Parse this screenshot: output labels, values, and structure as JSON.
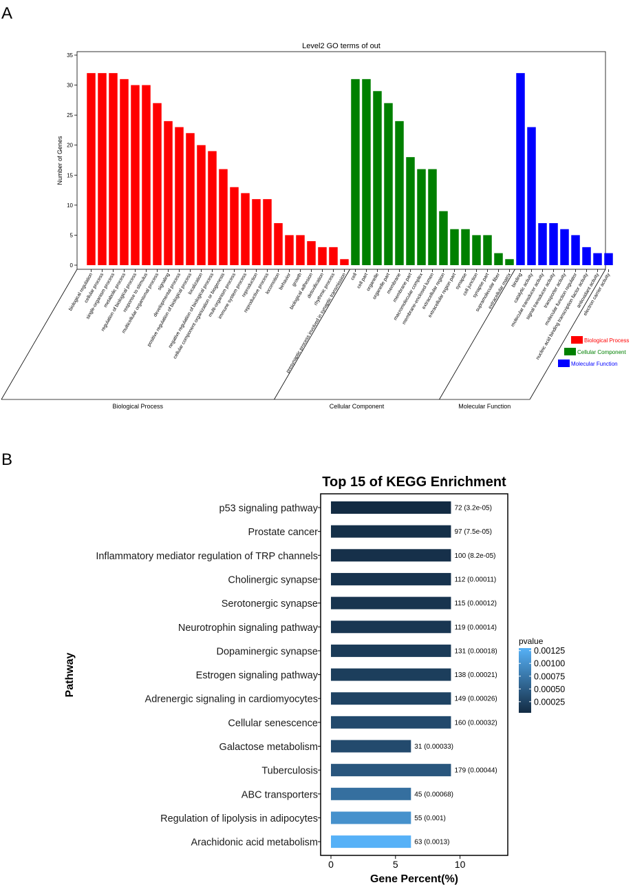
{
  "panels": {
    "a_label": "A",
    "b_label": "B"
  },
  "chart_data": [
    {
      "type": "bar",
      "title": "Level2 GO terms of out",
      "ylabel": "Number of Genes",
      "ylim": [
        0,
        35
      ],
      "yticks": [
        0,
        5,
        10,
        15,
        20,
        25,
        30,
        35
      ],
      "categories": [
        "biological regulation",
        "cellular process",
        "single-organism process",
        "metabolic process",
        "regulation of biological process",
        "response to stimulus",
        "multicellular organismal process",
        "signaling",
        "developmental process",
        "positive regulation of biological process",
        "localization",
        "negative regulation of biological process",
        "cellular component organization or biogenesis",
        "multi-organism process",
        "immune system process",
        "reproduction",
        "reproductive process",
        "locomotion",
        "behavior",
        "growth",
        "biological adhesion",
        "detoxification",
        "rhythmic process",
        "presynaptic process involved in synaptic transmission",
        "cell",
        "cell part",
        "organelle",
        "organelle part",
        "membrane",
        "membrane part",
        "macromolecular complex",
        "membrane-enclosed lumen",
        "extracellular region",
        "extracellular region part",
        "synapse",
        "cell junction",
        "synapse part",
        "supramolecular fiber",
        "extracellular matrix",
        "binding",
        "catalytic activity",
        "molecular transducer activity",
        "signal transducer activity",
        "transporter activity",
        "molecular function regulator",
        "nucleic acid binding transcription factor activity",
        "antioxidant activity",
        "electron carrier activity"
      ],
      "values": [
        32,
        32,
        32,
        31,
        30,
        30,
        27,
        24,
        23,
        22,
        20,
        19,
        16,
        13,
        12,
        11,
        11,
        7,
        5,
        5,
        4,
        3,
        3,
        1,
        31,
        31,
        29,
        27,
        24,
        18,
        16,
        16,
        9,
        6,
        6,
        5,
        5,
        2,
        1,
        32,
        23,
        7,
        7,
        6,
        5,
        3,
        2,
        2
      ],
      "groups": [
        {
          "name": "Biological Process",
          "count": 24,
          "color": "#ff0000"
        },
        {
          "name": "Cellular Component",
          "count": 15,
          "color": "#008000"
        },
        {
          "name": "Molecular Function",
          "count": 9,
          "color": "#0000ff"
        }
      ],
      "legend": [
        "Biological Process",
        "Cellular Component",
        "Molecular Function"
      ]
    },
    {
      "type": "bar",
      "orientation": "horizontal",
      "title": "Top 15 of KEGG Enrichment",
      "xlabel": "Gene Percent(%)",
      "ylabel": "Pathway",
      "xticks": [
        0,
        5,
        10
      ],
      "xlim": [
        -0.8,
        13.7
      ],
      "categories": [
        "p53 signaling pathway",
        "Prostate cancer",
        "Inflammatory mediator regulation of TRP channels",
        "Cholinergic synapse",
        "Serotonergic synapse",
        "Neurotrophin signaling pathway",
        "Dopaminergic synapse",
        "Estrogen signaling pathway",
        "Adrenergic signaling in cardiomyocytes",
        "Cellular senescence",
        "Galactose metabolism",
        "Tuberculosis",
        "ABC transporters",
        "Regulation of lipolysis in adipocytes",
        "Arachidonic acid metabolism"
      ],
      "values": [
        9.3,
        9.3,
        9.3,
        9.3,
        9.3,
        9.3,
        9.3,
        9.3,
        9.3,
        9.3,
        6.2,
        9.3,
        6.2,
        6.2,
        6.2
      ],
      "pvalues": [
        3.2e-05,
        7.5e-05,
        8.2e-05,
        0.00011,
        0.00012,
        0.00014,
        0.00018,
        0.00021,
        0.00026,
        0.00032,
        0.00033,
        0.00044,
        0.00068,
        0.001,
        0.0013
      ],
      "bar_labels": [
        "72 (3.2e-05)",
        "97 (7.5e-05)",
        "100 (8.2e-05)",
        "112 (0.00011)",
        "115 (0.00012)",
        "119 (0.00014)",
        "131 (0.00018)",
        "138 (0.00021)",
        "149 (0.00026)",
        "160 (0.00032)",
        "31 (0.00033)",
        "179 (0.00044)",
        "45 (0.00068)",
        "55 (0.001)",
        "63 (0.0013)"
      ],
      "colorbar": {
        "title": "pvalue",
        "ticks": [
          "0.00125",
          "0.00100",
          "0.00075",
          "0.00050",
          "0.00025"
        ],
        "tick_values": [
          0.00125,
          0.001,
          0.00075,
          0.0005,
          0.00025
        ],
        "range": [
          3.2e-05,
          0.0013
        ],
        "low_color": "#132b43",
        "high_color": "#56b1f7"
      }
    }
  ]
}
